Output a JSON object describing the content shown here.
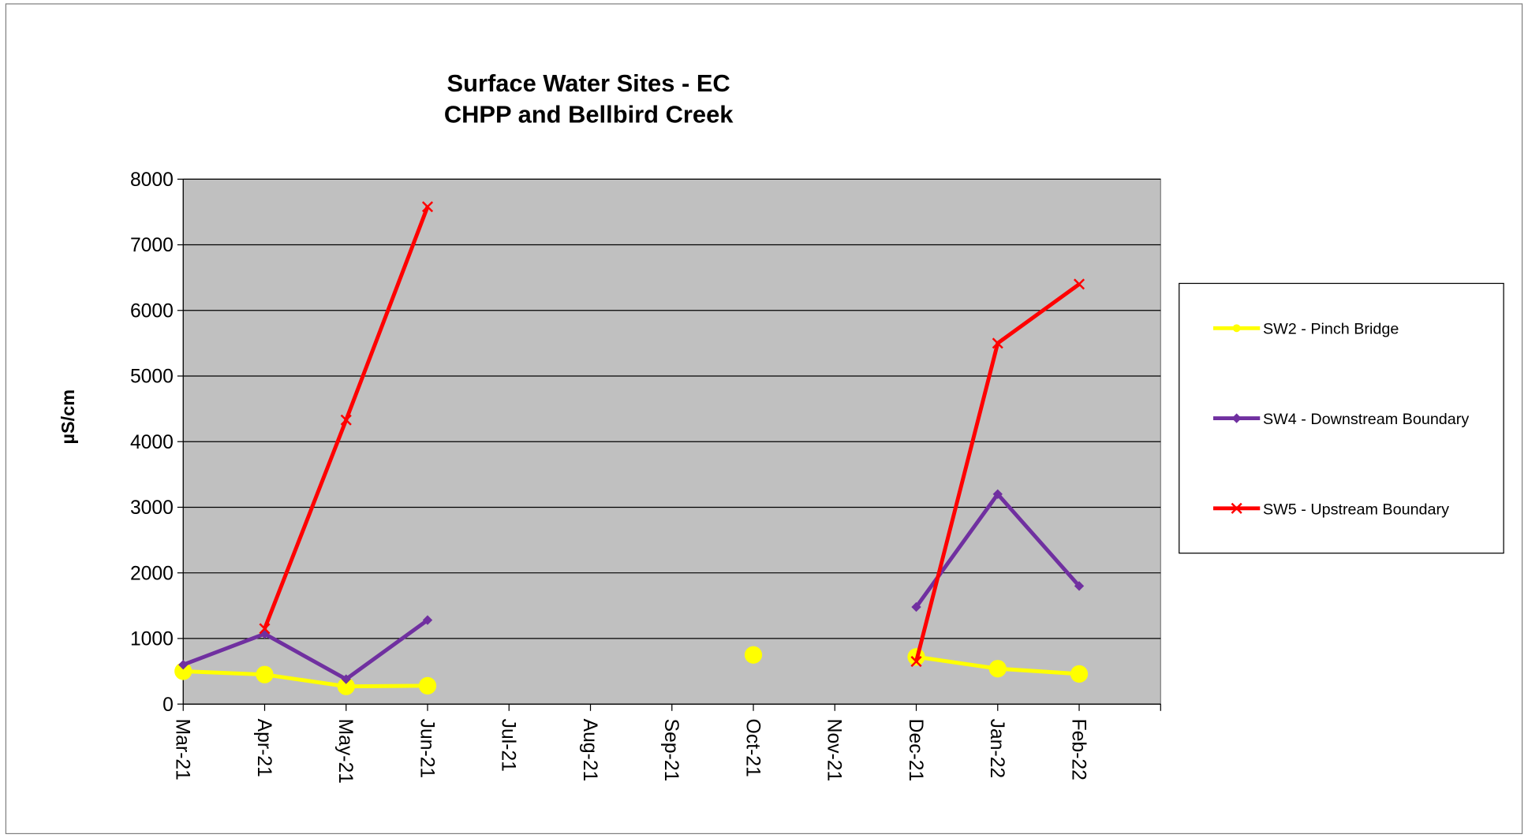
{
  "chart_data": {
    "type": "line",
    "title": [
      "Surface Water Sites - EC",
      "CHPP and Bellbird Creek"
    ],
    "y_label": "µS/cm",
    "categories": [
      "Mar-21",
      "Apr-21",
      "May-21",
      "Jun-21",
      "Jul-21",
      "Aug-21",
      "Sep-21",
      "Oct-21",
      "Nov-21",
      "Dec-21",
      "Jan-22",
      "Feb-22",
      null
    ],
    "series": [
      {
        "name": "SW2 - Pinch Bridge",
        "color": "#ffff00",
        "marker": "circle",
        "values": [
          500,
          450,
          270,
          280,
          null,
          null,
          null,
          750,
          null,
          720,
          540,
          460,
          null
        ]
      },
      {
        "name": "SW4 - Downstream Boundary",
        "color": "#7030a0",
        "marker": "diamond",
        "values": [
          600,
          1070,
          380,
          1280,
          null,
          null,
          null,
          null,
          null,
          1480,
          3200,
          1800,
          null
        ]
      },
      {
        "name": "SW5 - Upstream Boundary",
        "color": "#ff0000",
        "marker": "x",
        "values": [
          null,
          1150,
          4330,
          7580,
          null,
          null,
          null,
          null,
          null,
          650,
          5500,
          6400,
          null
        ]
      }
    ],
    "ylim": [
      0,
      8000
    ],
    "yticks": [
      0,
      1000,
      2000,
      3000,
      4000,
      5000,
      6000,
      7000,
      8000
    ],
    "grid": true,
    "plot_background": "#c0c0c0",
    "legend": "right"
  }
}
